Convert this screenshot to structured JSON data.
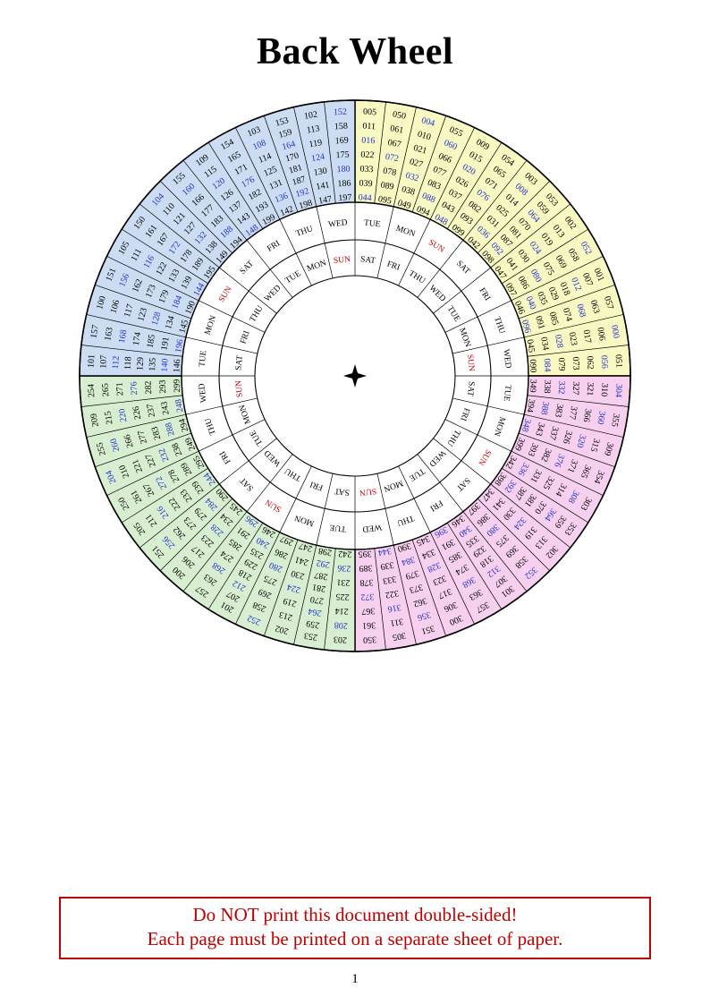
{
  "page": {
    "title": "Back Wheel",
    "page_number": "1",
    "warning": {
      "line1": "Do NOT print this document double-sided!",
      "line2": "Each page must be printed on a separate sheet of paper."
    }
  },
  "wheel": {
    "colors": {
      "quadrant_yellow": "#f8f8c2",
      "quadrant_pink": "#f6d0ee",
      "quadrant_green": "#d8eed0",
      "quadrant_blue": "#ccdcf2",
      "leap_year_text": "#2233cc",
      "common_year_text": "#000000",
      "sunday_text": "#cc0000",
      "day_text": "#000000",
      "line_color": "#000000"
    },
    "outer_day_ring": [
      "WED",
      "TUE",
      "MON",
      "SUN",
      "SAT",
      "FRI",
      "THU",
      "WED",
      "TUE",
      "MON",
      "SUN",
      "SAT",
      "FRI",
      "THU",
      "WED",
      "TUE",
      "MON",
      "SUN",
      "SAT",
      "FRI",
      "THU",
      "WED",
      "TUE",
      "MON",
      "SUN",
      "SAT",
      "FRI",
      "THU"
    ],
    "inner_day_ring": [
      "SUN",
      "SAT",
      "FRI",
      "THU",
      "WED",
      "TUE",
      "MON",
      "SUN",
      "SAT",
      "FRI",
      "THU",
      "WED",
      "TUE",
      "MON",
      "SUN",
      "SAT",
      "FRI",
      "THU",
      "WED",
      "TUE",
      "MON",
      "SUN",
      "SAT",
      "FRI",
      "THU",
      "WED",
      "TUE",
      "MON"
    ],
    "quadrants": [
      {
        "name": "yellow",
        "color": "#f8f8c2",
        "columns": [
          [
            "005",
            "011",
            "016",
            "022",
            "033",
            "039",
            "044"
          ],
          [
            "050",
            "061",
            "067",
            "072",
            "078",
            "089",
            "095"
          ],
          [
            "004",
            "010",
            "021",
            "027",
            "032",
            "038",
            "049"
          ],
          [
            "055",
            "060",
            "066",
            "077",
            "083",
            "088",
            "094"
          ],
          [
            "009",
            "015",
            "020",
            "026",
            "037",
            "043",
            "048"
          ],
          [
            "054",
            "065",
            "071",
            "076",
            "082",
            "093",
            "099"
          ],
          [
            "003",
            "008",
            "014",
            "025",
            "031",
            "036",
            "042"
          ],
          [
            "053",
            "059",
            "064",
            "070",
            "081",
            "087",
            "092",
            "098"
          ],
          [
            "002",
            "013",
            "019",
            "024",
            "030",
            "041",
            "047"
          ],
          [
            "052",
            "058",
            "069",
            "075",
            "080",
            "086",
            "097"
          ],
          [
            "001",
            "007",
            "012",
            "018",
            "029",
            "035",
            "040",
            "046"
          ],
          [
            "057",
            "063",
            "068",
            "074",
            "085",
            "091",
            "096"
          ],
          [
            "000",
            "006",
            "017",
            "023",
            "028",
            "034",
            "045"
          ],
          [
            "051",
            "056",
            "062",
            "073",
            "079",
            "084",
            "090"
          ]
        ]
      },
      {
        "name": "pink",
        "color": "#f6d0ee",
        "columns": [
          [
            "304",
            "310",
            "321",
            "327",
            "332",
            "338",
            "349"
          ],
          [
            "355",
            "360",
            "366",
            "377",
            "383",
            "388",
            "394"
          ],
          [
            "309",
            "315",
            "320",
            "326",
            "337",
            "343",
            "348"
          ],
          [
            "354",
            "365",
            "371",
            "376",
            "382",
            "393",
            "399"
          ],
          [
            "303",
            "308",
            "314",
            "325",
            "331",
            "336",
            "342"
          ],
          [
            "353",
            "359",
            "364",
            "370",
            "381",
            "387",
            "392",
            "398"
          ],
          [
            "302",
            "313",
            "319",
            "324",
            "330",
            "341",
            "347"
          ],
          [
            "352",
            "358",
            "369",
            "375",
            "380",
            "386",
            "397"
          ],
          [
            "301",
            "307",
            "312",
            "318",
            "329",
            "335",
            "340",
            "346"
          ],
          [
            "357",
            "363",
            "368",
            "374",
            "385",
            "391",
            "396"
          ],
          [
            "300",
            "306",
            "317",
            "323",
            "328",
            "334",
            "345"
          ],
          [
            "351",
            "356",
            "362",
            "373",
            "379",
            "384",
            "390"
          ],
          [
            "305",
            "311",
            "316",
            "322",
            "333",
            "339",
            "344"
          ],
          [
            "350",
            "361",
            "367",
            "372",
            "378",
            "389",
            "395"
          ]
        ]
      },
      {
        "name": "green",
        "color": "#d8eed0",
        "columns": [
          [
            "203",
            "208",
            "214",
            "225",
            "231",
            "236",
            "242"
          ],
          [
            "253",
            "259",
            "264",
            "270",
            "281",
            "287",
            "292",
            "298"
          ],
          [
            "202",
            "213",
            "219",
            "224",
            "230",
            "241",
            "247"
          ],
          [
            "252",
            "258",
            "269",
            "275",
            "280",
            "286",
            "297"
          ],
          [
            "201",
            "207",
            "212",
            "218",
            "229",
            "235",
            "240",
            "246"
          ],
          [
            "257",
            "263",
            "268",
            "274",
            "285",
            "291",
            "296"
          ],
          [
            "200",
            "206",
            "217",
            "223",
            "228",
            "234",
            "245"
          ],
          [
            "251",
            "256",
            "262",
            "273",
            "279",
            "284",
            "290"
          ],
          [
            "205",
            "211",
            "216",
            "222",
            "233",
            "239",
            "244"
          ],
          [
            "250",
            "261",
            "267",
            "272",
            "278",
            "289",
            "295"
          ],
          [
            "204",
            "210",
            "221",
            "227",
            "232",
            "238",
            "249"
          ],
          [
            "255",
            "260",
            "266",
            "277",
            "283",
            "288",
            "294"
          ],
          [
            "209",
            "215",
            "220",
            "226",
            "237",
            "243",
            "248"
          ],
          [
            "254",
            "265",
            "271",
            "276",
            "282",
            "293",
            "299"
          ]
        ]
      },
      {
        "name": "blue",
        "color": "#ccdcf2",
        "columns": [
          [
            "101",
            "107",
            "112",
            "118",
            "129",
            "135",
            "140",
            "146"
          ],
          [
            "157",
            "163",
            "168",
            "174",
            "185",
            "191",
            "196"
          ],
          [
            "100",
            "106",
            "117",
            "123",
            "128",
            "134",
            "145"
          ],
          [
            "151",
            "156",
            "162",
            "173",
            "179",
            "184",
            "190"
          ],
          [
            "105",
            "111",
            "116",
            "122",
            "133",
            "139",
            "144"
          ],
          [
            "150",
            "161",
            "167",
            "172",
            "178",
            "189",
            "195"
          ],
          [
            "104",
            "110",
            "121",
            "127",
            "132",
            "138",
            "149"
          ],
          [
            "155",
            "160",
            "166",
            "177",
            "183",
            "188",
            "194"
          ],
          [
            "109",
            "115",
            "120",
            "126",
            "137",
            "143",
            "148"
          ],
          [
            "154",
            "165",
            "171",
            "176",
            "182",
            "193",
            "199"
          ],
          [
            "103",
            "108",
            "114",
            "125",
            "131",
            "136",
            "142"
          ],
          [
            "153",
            "159",
            "164",
            "170",
            "181",
            "187",
            "192",
            "198"
          ],
          [
            "102",
            "113",
            "119",
            "124",
            "130",
            "141",
            "147"
          ],
          [
            "152",
            "158",
            "169",
            "175",
            "180",
            "186",
            "197"
          ]
        ]
      }
    ]
  }
}
